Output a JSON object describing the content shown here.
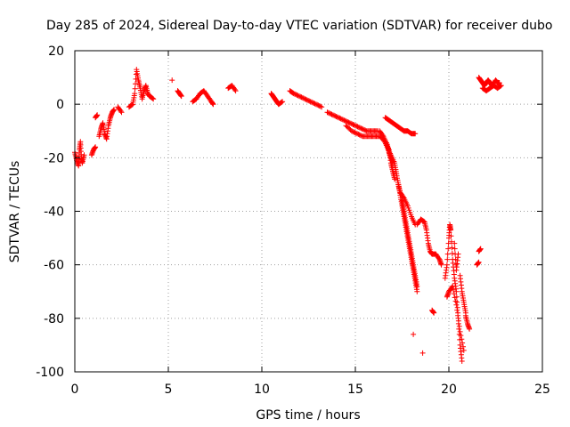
{
  "chart_data": {
    "type": "scatter",
    "title": "Day 285 of 2024, Sidereal Day-to-day VTEC variation (SDTVAR) for receiver dubo",
    "xlabel": "GPS time / hours",
    "ylabel": "SDTVAR / TECUs",
    "xlim": [
      0,
      25
    ],
    "ylim": [
      -100,
      20
    ],
    "xticks": [
      0,
      5,
      10,
      15,
      20,
      25
    ],
    "yticks": [
      20,
      0,
      -20,
      -40,
      -60,
      -80,
      -100
    ],
    "grid": true,
    "marker": "+",
    "series": [
      {
        "name": "SDTVAR",
        "color": "#ff0000",
        "segments": [
          [
            [
              0.0,
              -18
            ],
            [
              0.1,
              -21
            ],
            [
              0.2,
              -23
            ],
            [
              0.25,
              -17
            ],
            [
              0.3,
              -14
            ],
            [
              0.35,
              -20
            ],
            [
              0.4,
              -22
            ],
            [
              0.5,
              -19
            ]
          ],
          [
            [
              0.9,
              -19
            ],
            [
              1.0,
              -17
            ],
            [
              1.1,
              -16
            ]
          ],
          [
            [
              1.1,
              -5
            ],
            [
              1.2,
              -4
            ]
          ],
          [
            [
              1.3,
              -12
            ],
            [
              1.4,
              -9
            ],
            [
              1.5,
              -7
            ],
            [
              1.6,
              -11
            ],
            [
              1.7,
              -13
            ],
            [
              1.8,
              -8
            ],
            [
              1.9,
              -5
            ],
            [
              2.0,
              -3
            ],
            [
              2.1,
              -2
            ]
          ],
          [
            [
              2.3,
              -1
            ],
            [
              2.5,
              -3
            ]
          ],
          [
            [
              2.9,
              -1
            ],
            [
              3.1,
              0
            ],
            [
              3.2,
              4
            ],
            [
              3.3,
              13
            ],
            [
              3.4,
              9
            ],
            [
              3.5,
              6
            ],
            [
              3.6,
              2
            ],
            [
              3.7,
              5
            ],
            [
              3.8,
              7
            ],
            [
              3.9,
              4
            ],
            [
              4.0,
              3
            ],
            [
              4.2,
              2
            ]
          ],
          [
            [
              5.2,
              9
            ]
          ],
          [
            [
              5.5,
              5
            ],
            [
              5.6,
              4
            ],
            [
              5.7,
              3
            ]
          ],
          [
            [
              6.3,
              1
            ],
            [
              6.5,
              2
            ],
            [
              6.7,
              4
            ],
            [
              6.9,
              5
            ],
            [
              7.1,
              3
            ],
            [
              7.3,
              1
            ],
            [
              7.4,
              0
            ]
          ],
          [
            [
              8.2,
              6
            ],
            [
              8.4,
              7
            ],
            [
              8.6,
              5
            ]
          ],
          [
            [
              10.5,
              4
            ],
            [
              10.6,
              3
            ],
            [
              10.7,
              2
            ],
            [
              10.8,
              1
            ],
            [
              10.9,
              0
            ],
            [
              11.1,
              1
            ]
          ],
          [
            [
              11.5,
              5
            ],
            [
              11.7,
              4
            ],
            [
              12.0,
              3
            ],
            [
              12.3,
              2
            ],
            [
              12.6,
              1
            ],
            [
              12.9,
              0
            ],
            [
              13.2,
              -1
            ]
          ],
          [
            [
              13.5,
              -3
            ],
            [
              13.8,
              -4
            ],
            [
              14.1,
              -5
            ],
            [
              14.4,
              -6
            ],
            [
              14.7,
              -7
            ],
            [
              15.0,
              -8
            ],
            [
              15.3,
              -9
            ],
            [
              15.6,
              -10
            ],
            [
              15.9,
              -10
            ],
            [
              16.2,
              -10
            ]
          ],
          [
            [
              14.5,
              -8
            ],
            [
              14.8,
              -10
            ],
            [
              15.1,
              -11
            ],
            [
              15.4,
              -12
            ],
            [
              15.7,
              -12
            ],
            [
              16.0,
              -12
            ],
            [
              16.3,
              -12
            ],
            [
              16.6,
              -14
            ],
            [
              16.8,
              -17
            ],
            [
              16.9,
              -22
            ],
            [
              17.0,
              -25
            ],
            [
              17.1,
              -28
            ]
          ],
          [
            [
              16.3,
              -10
            ],
            [
              16.5,
              -12
            ],
            [
              16.7,
              -15
            ],
            [
              16.8,
              -18
            ],
            [
              16.9,
              -20
            ],
            [
              17.0,
              -22
            ]
          ],
          [
            [
              16.5,
              -13
            ],
            [
              16.7,
              -16
            ],
            [
              16.9,
              -19
            ],
            [
              17.1,
              -22
            ],
            [
              17.2,
              -26
            ],
            [
              17.3,
              -30
            ],
            [
              17.4,
              -33
            ],
            [
              17.6,
              -35
            ],
            [
              17.8,
              -38
            ],
            [
              18.0,
              -42
            ],
            [
              18.2,
              -45
            ]
          ],
          [
            [
              17.3,
              -30
            ],
            [
              17.4,
              -34
            ],
            [
              17.5,
              -38
            ],
            [
              17.6,
              -42
            ],
            [
              17.7,
              -46
            ],
            [
              17.8,
              -50
            ],
            [
              17.9,
              -54
            ],
            [
              18.0,
              -58
            ],
            [
              18.1,
              -62
            ],
            [
              18.2,
              -66
            ],
            [
              18.3,
              -70
            ]
          ],
          [
            [
              17.5,
              -36
            ],
            [
              17.6,
              -40
            ],
            [
              17.7,
              -44
            ],
            [
              17.8,
              -48
            ],
            [
              17.9,
              -52
            ],
            [
              18.0,
              -56
            ],
            [
              18.1,
              -60
            ],
            [
              18.2,
              -64
            ],
            [
              18.3,
              -68
            ]
          ],
          [
            [
              16.6,
              -5
            ],
            [
              16.8,
              -6
            ],
            [
              17.0,
              -7
            ],
            [
              17.2,
              -8
            ],
            [
              17.4,
              -9
            ],
            [
              17.6,
              -10
            ],
            [
              17.8,
              -10
            ],
            [
              18.0,
              -11
            ],
            [
              18.2,
              -11
            ]
          ],
          [
            [
              18.3,
              -45
            ],
            [
              18.5,
              -43
            ],
            [
              18.7,
              -44
            ],
            [
              18.8,
              -47
            ],
            [
              18.9,
              -52
            ],
            [
              19.0,
              -55
            ],
            [
              19.1,
              -56
            ],
            [
              19.3,
              -56
            ],
            [
              19.5,
              -58
            ],
            [
              19.6,
              -60
            ]
          ],
          [
            [
              18.1,
              -86
            ]
          ],
          [
            [
              18.6,
              -93
            ]
          ],
          [
            [
              19.1,
              -77
            ],
            [
              19.2,
              -78
            ]
          ],
          [
            [
              19.8,
              -65
            ],
            [
              19.9,
              -60
            ],
            [
              20.0,
              -50
            ],
            [
              20.05,
              -45
            ],
            [
              20.1,
              -47
            ],
            [
              20.2,
              -58
            ],
            [
              20.3,
              -65
            ],
            [
              20.4,
              -70
            ],
            [
              20.5,
              -80
            ],
            [
              20.6,
              -90
            ],
            [
              20.7,
              -96
            ]
          ],
          [
            [
              19.9,
              -72
            ],
            [
              20.0,
              -70
            ],
            [
              20.2,
              -68
            ],
            [
              20.4,
              -75
            ],
            [
              20.6,
              -85
            ],
            [
              20.8,
              -92
            ]
          ],
          [
            [
              20.3,
              -52
            ],
            [
              20.4,
              -62
            ],
            [
              20.5,
              -56
            ]
          ],
          [
            [
              20.6,
              -64
            ],
            [
              20.7,
              -70
            ],
            [
              20.8,
              -74
            ],
            [
              20.9,
              -78
            ]
          ],
          [
            [
              20.9,
              -79
            ],
            [
              21.0,
              -82
            ],
            [
              21.1,
              -84
            ]
          ],
          [
            [
              21.5,
              -60
            ],
            [
              21.6,
              -59
            ]
          ],
          [
            [
              21.6,
              -55
            ],
            [
              21.7,
              -54
            ]
          ],
          [
            [
              21.6,
              10
            ],
            [
              21.7,
              9
            ],
            [
              21.8,
              8
            ],
            [
              21.9,
              7
            ],
            [
              22.0,
              8
            ],
            [
              22.1,
              9
            ],
            [
              22.2,
              8
            ],
            [
              22.3,
              7
            ],
            [
              22.5,
              9
            ],
            [
              22.6,
              8
            ],
            [
              22.7,
              8
            ]
          ],
          [
            [
              21.8,
              6
            ],
            [
              22.0,
              5
            ],
            [
              22.2,
              6
            ],
            [
              22.4,
              7
            ],
            [
              22.6,
              6
            ],
            [
              22.8,
              7
            ]
          ]
        ]
      }
    ]
  }
}
